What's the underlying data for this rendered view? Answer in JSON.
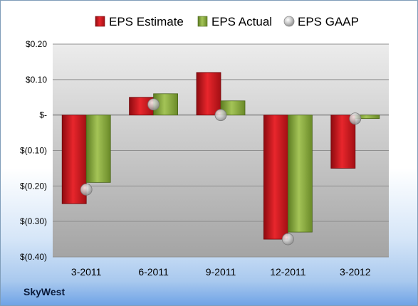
{
  "company_label": "SkyWest",
  "colors": {
    "estimate": "#d4151c",
    "actual": "#8db13a",
    "gaap": "#b8b8b8"
  },
  "chart_data": {
    "type": "bar",
    "title": "",
    "xlabel": "",
    "ylabel": "",
    "categories": [
      "3-2011",
      "6-2011",
      "9-2011",
      "12-2011",
      "3-2012"
    ],
    "series": [
      {
        "name": "EPS Estimate",
        "kind": "bar",
        "values": [
          -0.25,
          0.05,
          0.12,
          -0.35,
          -0.15
        ]
      },
      {
        "name": "EPS Actual",
        "kind": "bar",
        "values": [
          -0.19,
          0.06,
          0.04,
          -0.33,
          -0.01
        ]
      },
      {
        "name": "EPS GAAP",
        "kind": "marker",
        "values": [
          -0.21,
          0.03,
          0.0,
          -0.35,
          -0.01
        ]
      }
    ],
    "ylim": [
      -0.4,
      0.2
    ],
    "yticks": [
      0.2,
      0.1,
      0.0,
      -0.1,
      -0.2,
      -0.3,
      -0.4
    ],
    "ytick_labels": [
      "$0.20",
      "$0.10",
      "$-",
      "$(0.10)",
      "$(0.20)",
      "$(0.30)",
      "$(0.40)"
    ],
    "grid": true,
    "legend": "top"
  }
}
